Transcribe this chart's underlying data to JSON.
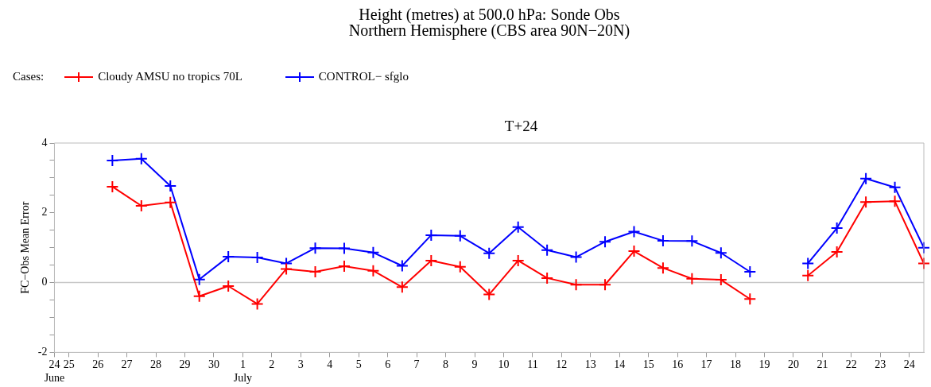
{
  "chart_data": {
    "type": "line",
    "title": "Height (metres) at 500.0 hPa:  Sonde Obs",
    "subtitle": "Northern Hemisphere (CBS area 90N−20N)",
    "legend_title": "Cases:",
    "legend": "top left",
    "ylabel": "FC−Obs Mean Error",
    "annotations": [
      "T+24"
    ],
    "marker": "cross",
    "line_style": "solid",
    "grid": false,
    "x": [
      "--06-26T12:00",
      "--06-27T12:00",
      "--06-28T12:00",
      "--06-29T12:00",
      "--06-30T12:00",
      "--07-01T12:00",
      "--07-02T12:00",
      "--07-03T12:00",
      "--07-04T12:00",
      "--07-05T12:00",
      "--07-06T12:00",
      "--07-07T12:00",
      "--07-08T12:00",
      "--07-09T12:00",
      "--07-10T12:00",
      "--07-11T12:00",
      "--07-12T12:00",
      "--07-13T12:00",
      "--07-14T12:00",
      "--07-15T12:00",
      "--07-16T12:00",
      "--07-17T12:00",
      "--07-18T12:00",
      "--07-19T12:00",
      "--07-20T12:00",
      "--07-21T12:00",
      "--07-22T12:00",
      "--07-23T12:00",
      "--07-24T12:00"
    ],
    "series": [
      {
        "name": "Cloudy AMSU no tropics 70L",
        "color": "#ff0000",
        "values": [
          2.75,
          2.2,
          2.3,
          -0.39,
          -0.1,
          -0.61,
          0.39,
          0.31,
          0.47,
          0.34,
          -0.13,
          0.63,
          0.45,
          -0.34,
          0.63,
          0.13,
          -0.06,
          -0.06,
          0.9,
          0.42,
          0.11,
          0.08,
          -0.47,
          null,
          0.2,
          0.88,
          2.31,
          2.33,
          0.55
        ]
      },
      {
        "name": "CONTROL− sfglo",
        "color": "#0000ff",
        "values": [
          3.5,
          3.55,
          2.77,
          0.09,
          0.74,
          0.72,
          0.55,
          0.99,
          0.98,
          0.86,
          0.48,
          1.36,
          1.34,
          0.84,
          1.59,
          0.93,
          0.73,
          1.17,
          1.46,
          1.2,
          1.19,
          0.85,
          0.31,
          null,
          0.55,
          1.56,
          2.98,
          2.73,
          1.0
        ]
      }
    ],
    "xlim": [
      "--06-24T12:00",
      "--07-24T12:00"
    ],
    "xticks": [
      {
        "value": "--06-24T12:00",
        "label": "24\nJune"
      },
      {
        "value": "--06-25",
        "label": "25"
      },
      {
        "value": "--06-26",
        "label": "26"
      },
      {
        "value": "--06-27",
        "label": "27"
      },
      {
        "value": "--06-28",
        "label": "28"
      },
      {
        "value": "--06-29",
        "label": "29"
      },
      {
        "value": "--06-30",
        "label": "30"
      },
      {
        "value": "--07-01",
        "label": "1\nJuly"
      },
      {
        "value": "--07-02",
        "label": "2"
      },
      {
        "value": "--07-03",
        "label": "3"
      },
      {
        "value": "--07-04",
        "label": "4"
      },
      {
        "value": "--07-05",
        "label": "5"
      },
      {
        "value": "--07-06",
        "label": "6"
      },
      {
        "value": "--07-07",
        "label": "7"
      },
      {
        "value": "--07-08",
        "label": "8"
      },
      {
        "value": "--07-09",
        "label": "9"
      },
      {
        "value": "--07-10",
        "label": "10"
      },
      {
        "value": "--07-11",
        "label": "11"
      },
      {
        "value": "--07-12",
        "label": "12"
      },
      {
        "value": "--07-13",
        "label": "13"
      },
      {
        "value": "--07-14",
        "label": "14"
      },
      {
        "value": "--07-15",
        "label": "15"
      },
      {
        "value": "--07-16",
        "label": "16"
      },
      {
        "value": "--07-17",
        "label": "17"
      },
      {
        "value": "--07-18",
        "label": "18"
      },
      {
        "value": "--07-19",
        "label": "19"
      },
      {
        "value": "--07-20",
        "label": "20"
      },
      {
        "value": "--07-21",
        "label": "21"
      },
      {
        "value": "--07-22",
        "label": "22"
      },
      {
        "value": "--07-23",
        "label": "23"
      },
      {
        "value": "--07-24",
        "label": "24"
      }
    ],
    "ylim": [
      -2,
      4
    ],
    "yticks": [
      -2,
      {
        "value": -1.5,
        "label": null
      },
      {
        "value": -1,
        "label": null
      },
      {
        "value": -0.5,
        "label": null
      },
      0,
      {
        "value": 0.5,
        "label": null
      },
      {
        "value": 1,
        "label": null
      },
      {
        "value": 1.5,
        "label": null
      },
      2,
      {
        "value": 2.5,
        "label": null
      },
      {
        "value": 3,
        "label": null
      },
      {
        "value": 3.5,
        "label": null
      },
      4
    ],
    "ref_lines": [
      {
        "axis": "y",
        "value": 0,
        "color": "#c8c8c8"
      }
    ]
  }
}
